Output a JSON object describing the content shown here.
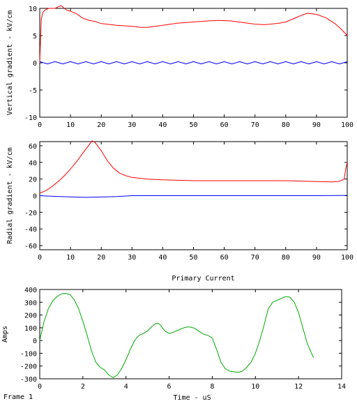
{
  "frame_label": "Frame 1",
  "colors": {
    "red_series": "#ff0000",
    "blue_series": "#0000ff",
    "green_series": "#00aa00",
    "axes": "#000000",
    "background": "#ffffff"
  },
  "chart_data": [
    {
      "type": "line",
      "title": "",
      "xlabel": "",
      "ylabel": "Vertical gradient - kV/cm",
      "xlim": [
        0,
        100
      ],
      "ylim": [
        -10,
        10
      ],
      "xticks": [
        0,
        10,
        20,
        30,
        40,
        50,
        60,
        70,
        80,
        90,
        100
      ],
      "yticks": [
        -10,
        -5,
        0,
        5,
        10
      ],
      "grid": false,
      "series": [
        {
          "color": "#ff0000",
          "x": [
            0,
            0.5,
            1,
            2,
            3,
            4,
            5,
            6,
            7,
            8,
            9,
            10,
            12,
            14,
            16,
            18,
            20,
            25,
            30,
            33,
            35,
            40,
            45,
            50,
            55,
            58,
            62,
            66,
            70,
            73,
            75,
            78,
            80,
            83,
            85,
            87,
            90,
            93,
            96,
            98,
            100
          ],
          "y": [
            0,
            8,
            9.3,
            9.8,
            10,
            10,
            10,
            10.3,
            10.5,
            10,
            9.6,
            9.5,
            9,
            8.2,
            7.8,
            7.6,
            7.2,
            6.9,
            6.7,
            6.5,
            6.5,
            6.9,
            7.3,
            7.5,
            7.7,
            7.8,
            7.7,
            7.4,
            7.1,
            7.0,
            7.1,
            7.3,
            7.5,
            8.2,
            8.7,
            9.1,
            8.9,
            8.3,
            7.2,
            6.2,
            5.0
          ]
        },
        {
          "color": "#0000ff",
          "x": [
            0,
            2.5,
            5,
            7.5,
            10,
            12.5,
            15,
            17.5,
            20,
            22.5,
            25,
            27.5,
            30,
            32.5,
            35,
            37.5,
            40,
            42.5,
            45,
            47.5,
            50,
            52.5,
            55,
            57.5,
            60,
            62.5,
            65,
            67.5,
            70,
            72.5,
            75,
            77.5,
            80,
            82.5,
            85,
            87.5,
            90,
            92.5,
            95,
            97.5,
            100
          ],
          "y": [
            0.2,
            -0.2,
            0.2,
            -0.2,
            0.2,
            -0.2,
            0.2,
            -0.2,
            0.2,
            -0.2,
            0.2,
            -0.2,
            0.2,
            -0.2,
            0.2,
            -0.2,
            0.2,
            -0.2,
            0.2,
            -0.2,
            0.2,
            -0.2,
            0.2,
            -0.2,
            0.2,
            -0.2,
            0.2,
            -0.2,
            0.2,
            -0.2,
            0.2,
            -0.2,
            0.2,
            -0.2,
            0.2,
            -0.2,
            0.2,
            -0.2,
            0.2,
            -0.2,
            0.2
          ]
        }
      ]
    },
    {
      "type": "line",
      "title": "",
      "xlabel": "",
      "ylabel": "Radial gradient - kV/cm",
      "xlim": [
        0,
        100
      ],
      "ylim": [
        -65,
        65
      ],
      "xticks": [
        0,
        10,
        20,
        30,
        40,
        50,
        60,
        70,
        80,
        90,
        100
      ],
      "yticks": [
        -60,
        -40,
        -20,
        0,
        20,
        40,
        60
      ],
      "grid": false,
      "series": [
        {
          "color": "#ff0000",
          "x": [
            0,
            2,
            4,
            6,
            8,
            10,
            12,
            14,
            16,
            17,
            18,
            20,
            22,
            24,
            26,
            28,
            30,
            35,
            40,
            50,
            60,
            70,
            80,
            90,
            95,
            97,
            98,
            99,
            99.5,
            100
          ],
          "y": [
            3,
            6,
            11,
            17,
            24,
            32,
            41,
            51,
            61,
            66,
            64,
            54,
            42,
            33,
            27,
            24,
            22,
            20,
            19,
            18,
            18,
            18,
            18,
            17,
            16.5,
            17,
            18,
            20,
            32,
            40
          ]
        },
        {
          "color": "#0000ff",
          "x": [
            0,
            5,
            10,
            15,
            20,
            25,
            30,
            40,
            50,
            60,
            70,
            80,
            90,
            100
          ],
          "y": [
            0,
            -0.8,
            -1.5,
            -2,
            -1.6,
            -1,
            0,
            0,
            0,
            0,
            0,
            0,
            0,
            0.3
          ]
        }
      ]
    },
    {
      "type": "line",
      "title": "Primary Current",
      "xlabel": "Time - uS",
      "ylabel": "Amps",
      "xlim": [
        0,
        14
      ],
      "ylim": [
        -300,
        400
      ],
      "xticks": [
        0,
        2,
        4,
        6,
        8,
        10,
        12,
        14
      ],
      "yticks": [
        -300,
        -200,
        -100,
        0,
        100,
        200,
        300,
        400
      ],
      "grid": false,
      "series": [
        {
          "color": "#00aa00",
          "x": [
            0,
            0.2,
            0.4,
            0.6,
            0.8,
            1.0,
            1.2,
            1.4,
            1.6,
            1.8,
            2.0,
            2.2,
            2.4,
            2.6,
            2.8,
            3.0,
            3.2,
            3.4,
            3.6,
            3.8,
            4.0,
            4.2,
            4.4,
            4.6,
            4.8,
            5.0,
            5.2,
            5.4,
            5.5,
            5.6,
            5.8,
            6.0,
            6.2,
            6.4,
            6.6,
            6.8,
            7.0,
            7.2,
            7.4,
            7.6,
            7.8,
            8.0,
            8.2,
            8.4,
            8.6,
            8.8,
            9.0,
            9.2,
            9.4,
            9.6,
            9.8,
            10.0,
            10.2,
            10.4,
            10.6,
            10.8,
            11.0,
            11.2,
            11.4,
            11.6,
            11.8,
            12.0,
            12.2,
            12.4,
            12.6,
            12.7
          ],
          "y": [
            0,
            150,
            250,
            310,
            345,
            365,
            370,
            360,
            320,
            250,
            150,
            40,
            -80,
            -170,
            -210,
            -230,
            -270,
            -290,
            -270,
            -220,
            -150,
            -70,
            0,
            40,
            55,
            75,
            110,
            135,
            135,
            120,
            75,
            55,
            65,
            80,
            95,
            105,
            105,
            95,
            70,
            50,
            40,
            20,
            -70,
            -170,
            -220,
            -240,
            -245,
            -250,
            -240,
            -210,
            -170,
            -100,
            0,
            120,
            250,
            300,
            315,
            330,
            345,
            340,
            300,
            220,
            100,
            -20,
            -100,
            -135
          ]
        }
      ]
    }
  ]
}
